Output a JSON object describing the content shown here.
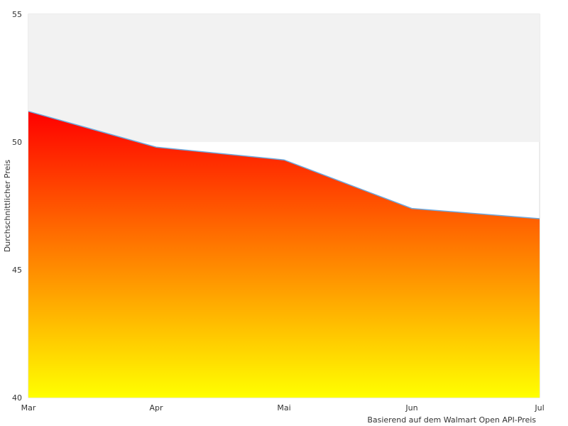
{
  "chart_data": {
    "type": "area",
    "categories": [
      "Mar",
      "Apr",
      "Mai",
      "Jun",
      "Jul"
    ],
    "series": [
      {
        "values": [
          51.2,
          49.8,
          49.3,
          47.4,
          47.0
        ],
        "line_color": "#6fa8dc",
        "gradient_top_color": "#ff0000",
        "gradient_bottom_color": "#ffff00"
      }
    ],
    "ylabel": "Durchschnittlicher Preis",
    "xlabel": "",
    "credit": "Basierend auf dem Walmart Open API-Preis",
    "ylim": [
      40,
      55
    ],
    "yticks": [
      40,
      45,
      50,
      55
    ],
    "band": {
      "from": 50,
      "to": 55,
      "color_lower": "#f2f2f2",
      "color_upper": "#ffffff"
    },
    "grid": false,
    "legend": "none"
  }
}
